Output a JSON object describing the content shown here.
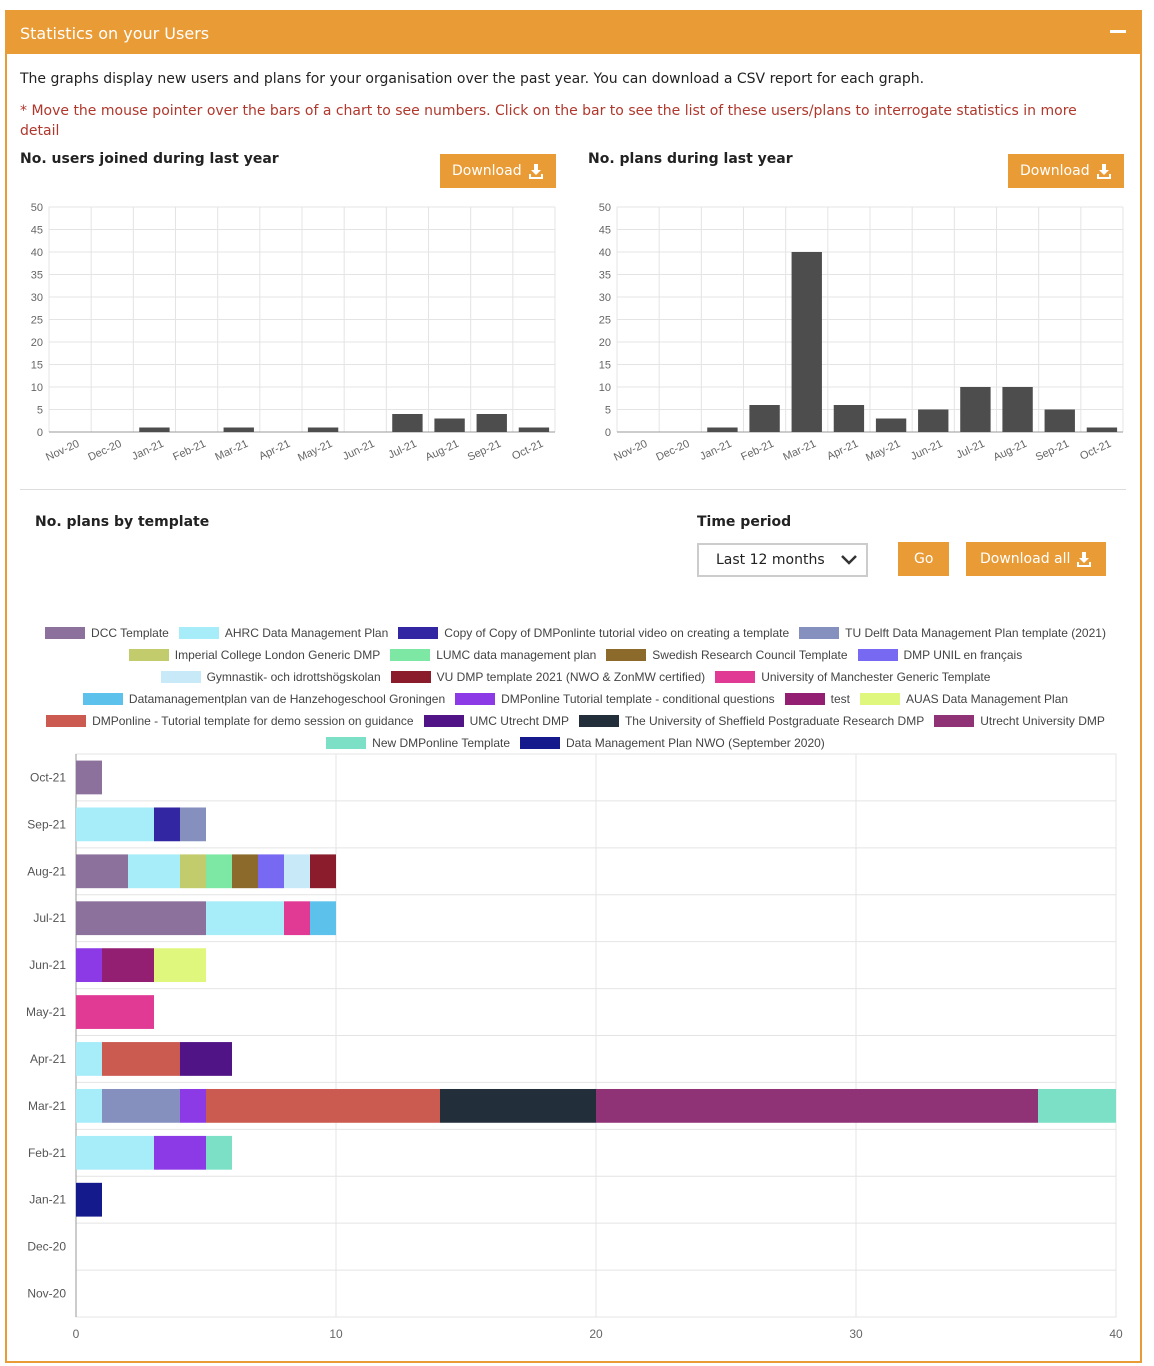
{
  "panel": {
    "title": "Statistics on your Users",
    "intro": "The graphs display new users and plans for your organisation over the past year. You can download a CSV report for each graph.",
    "note": "* Move the mouse pointer over the bars of a chart to see numbers. Click on the bar to see the list of these users/plans to interrogate statistics in more detail"
  },
  "users_chart": {
    "title": "No. users joined during last year",
    "download_label": "Download"
  },
  "plans_chart": {
    "title": "No. plans during last year",
    "download_label": "Download"
  },
  "template_section": {
    "title": "No. plans by template",
    "time_period_label": "Time period",
    "time_period_value": "Last 12 months",
    "go_label": "Go",
    "download_all_label": "Download all"
  },
  "colors": {
    "accent": "#e99b36",
    "bar": "#4d4d4d",
    "note": "#b0372c"
  },
  "chart_data": [
    {
      "type": "bar",
      "title": "No. users joined during last year",
      "categories": [
        "Nov-20",
        "Dec-20",
        "Jan-21",
        "Feb-21",
        "Mar-21",
        "Apr-21",
        "May-21",
        "Jun-21",
        "Jul-21",
        "Aug-21",
        "Sep-21",
        "Oct-21"
      ],
      "values": [
        0,
        0,
        1,
        0,
        1,
        0,
        1,
        0,
        4,
        3,
        4,
        1
      ],
      "ylim": [
        0,
        50
      ],
      "yticks": [
        0,
        5,
        10,
        15,
        20,
        25,
        30,
        35,
        40,
        45,
        50
      ],
      "grid": true
    },
    {
      "type": "bar",
      "title": "No. plans during last year",
      "categories": [
        "Nov-20",
        "Dec-20",
        "Jan-21",
        "Feb-21",
        "Mar-21",
        "Apr-21",
        "May-21",
        "Jun-21",
        "Jul-21",
        "Aug-21",
        "Sep-21",
        "Oct-21"
      ],
      "values": [
        0,
        0,
        1,
        6,
        40,
        6,
        3,
        5,
        10,
        10,
        5,
        1
      ],
      "ylim": [
        0,
        50
      ],
      "yticks": [
        0,
        5,
        10,
        15,
        20,
        25,
        30,
        35,
        40,
        45,
        50
      ],
      "grid": true
    },
    {
      "type": "bar",
      "orientation": "horizontal",
      "stacked": true,
      "title": "No. plans by template",
      "categories": [
        "Oct-21",
        "Sep-21",
        "Aug-21",
        "Jul-21",
        "Jun-21",
        "May-21",
        "Apr-21",
        "Mar-21",
        "Feb-21",
        "Jan-21",
        "Dec-20",
        "Nov-20"
      ],
      "xlim": [
        0,
        40
      ],
      "xticks": [
        0,
        10,
        20,
        30,
        40
      ],
      "legend_position": "top",
      "grid": true,
      "series": [
        {
          "name": "DCC Template",
          "color": "#8c719c",
          "values": [
            1,
            0,
            2,
            5,
            0,
            0,
            0,
            0,
            0,
            0,
            0,
            0
          ]
        },
        {
          "name": "AHRC Data Management Plan",
          "color": "#a7ecf9",
          "values": [
            0,
            3,
            2,
            3,
            0,
            0,
            1,
            1,
            3,
            0,
            0,
            0
          ]
        },
        {
          "name": "Copy of Copy of DMPonlinte tutorial video on creating a template",
          "color": "#3226a3",
          "values": [
            0,
            1,
            0,
            0,
            0,
            0,
            0,
            0,
            0,
            0,
            0,
            0
          ]
        },
        {
          "name": "TU Delft Data Management Plan template (2021)",
          "color": "#8690bf",
          "values": [
            0,
            1,
            0,
            0,
            0,
            0,
            0,
            3,
            0,
            0,
            0,
            0
          ]
        },
        {
          "name": "Imperial College London Generic DMP",
          "color": "#c3cc6c",
          "values": [
            0,
            0,
            1,
            0,
            0,
            0,
            0,
            0,
            0,
            0,
            0,
            0
          ]
        },
        {
          "name": "LUMC data management plan",
          "color": "#7de8a3",
          "values": [
            0,
            0,
            1,
            0,
            0,
            0,
            0,
            0,
            0,
            0,
            0,
            0
          ]
        },
        {
          "name": "Swedish Research Council Template",
          "color": "#8c6a2b",
          "values": [
            0,
            0,
            1,
            0,
            0,
            0,
            0,
            0,
            0,
            0,
            0,
            0
          ]
        },
        {
          "name": "DMP UNIL en français",
          "color": "#7769f2",
          "values": [
            0,
            0,
            1,
            0,
            0,
            0,
            0,
            0,
            0,
            0,
            0,
            0
          ]
        },
        {
          "name": "Gymnastik- och idrottshögskolan",
          "color": "#c8e9f8",
          "values": [
            0,
            0,
            1,
            0,
            0,
            0,
            0,
            0,
            0,
            0,
            0,
            0
          ]
        },
        {
          "name": "VU DMP template 2021 (NWO & ZonMW certified)",
          "color": "#8a1c2c",
          "values": [
            0,
            0,
            1,
            0,
            0,
            0,
            0,
            0,
            0,
            0,
            0,
            0
          ]
        },
        {
          "name": "University of Manchester Generic Template",
          "color": "#e13a95",
          "values": [
            0,
            0,
            0,
            1,
            0,
            3,
            0,
            0,
            0,
            0,
            0,
            0
          ]
        },
        {
          "name": "Datamanagementplan van de Hanzehogeschool Groningen",
          "color": "#5cc2ec",
          "values": [
            0,
            0,
            0,
            1,
            0,
            0,
            0,
            0,
            0,
            0,
            0,
            0
          ]
        },
        {
          "name": "DMPonline Tutorial template - conditional questions",
          "color": "#8b3ae6",
          "values": [
            0,
            0,
            0,
            0,
            1,
            0,
            0,
            1,
            2,
            0,
            0,
            0
          ]
        },
        {
          "name": "test",
          "color": "#931f72",
          "values": [
            0,
            0,
            0,
            0,
            2,
            0,
            0,
            0,
            0,
            0,
            0,
            0
          ]
        },
        {
          "name": "AUAS Data Management Plan",
          "color": "#e0f77e",
          "values": [
            0,
            0,
            0,
            0,
            2,
            0,
            0,
            0,
            0,
            0,
            0,
            0
          ]
        },
        {
          "name": "DMPonline - Tutorial template for demo session on guidance",
          "color": "#cb5a50",
          "values": [
            0,
            0,
            0,
            0,
            0,
            0,
            3,
            9,
            0,
            0,
            0,
            0
          ]
        },
        {
          "name": "UMC Utrecht DMP",
          "color": "#511486",
          "values": [
            0,
            0,
            0,
            0,
            0,
            0,
            2,
            0,
            0,
            0,
            0,
            0
          ]
        },
        {
          "name": "The University of Sheffield Postgraduate Research DMP",
          "color": "#222e3a",
          "values": [
            0,
            0,
            0,
            0,
            0,
            0,
            0,
            6,
            0,
            0,
            0,
            0
          ]
        },
        {
          "name": "Utrecht University DMP",
          "color": "#8f3276",
          "values": [
            0,
            0,
            0,
            0,
            0,
            0,
            0,
            17,
            0,
            0,
            0,
            0
          ]
        },
        {
          "name": "New DMPonline Template",
          "color": "#7ce0c7",
          "values": [
            0,
            0,
            0,
            0,
            0,
            0,
            0,
            3,
            1,
            0,
            0,
            0
          ]
        },
        {
          "name": "Data Management Plan NWO (September 2020)",
          "color": "#14198b",
          "values": [
            0,
            0,
            0,
            0,
            0,
            0,
            0,
            0,
            0,
            1,
            0,
            0
          ]
        }
      ]
    }
  ]
}
